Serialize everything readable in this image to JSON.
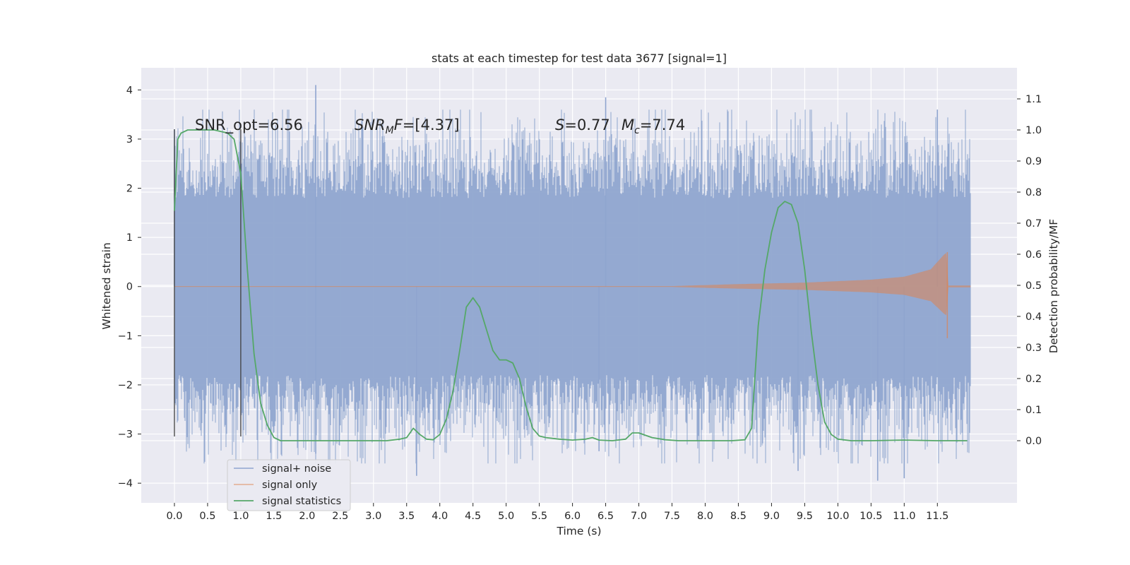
{
  "chart_data": {
    "type": "line",
    "title": "stats at each timestep for test data 3677 [signal=1]",
    "xlabel": "Time (s)",
    "ylabel_left": "Whitened strain",
    "ylabel_right": "Detection probability/MF",
    "xlim": [
      -0.5,
      12.7
    ],
    "ylim_left": [
      -4.4,
      4.45
    ],
    "ylim_right": [
      -0.2,
      1.2
    ],
    "x_ticks": [
      "0.0",
      "0.5",
      "1.0",
      "1.5",
      "2.0",
      "2.5",
      "3.0",
      "3.5",
      "4.0",
      "4.5",
      "5.0",
      "5.5",
      "6.0",
      "6.5",
      "7.0",
      "7.5",
      "8.0",
      "8.5",
      "9.0",
      "9.5",
      "10.0",
      "10.5",
      "11.0",
      "11.5"
    ],
    "y_ticks_left": [
      "−4",
      "−3",
      "−2",
      "−1",
      "0",
      "1",
      "2",
      "3",
      "4"
    ],
    "y_ticks_right": [
      "0.0",
      "0.1",
      "0.2",
      "0.3",
      "0.4",
      "0.5",
      "0.6",
      "0.7",
      "0.8",
      "0.9",
      "1.0",
      "1.1"
    ],
    "grid": true,
    "legend_position": "bottom-left",
    "annotations": {
      "snr_opt": "SNR_opt=6.56",
      "snr_mf": "=[4.37]",
      "snr_mf_prefix": "SNR",
      "snr_mf_sub": "M",
      "snr_mf_f": "F",
      "s_label": "S",
      "s_value": "=0.77",
      "mc_label": "M",
      "mc_sub": "c",
      "mc_value": "=7.74"
    },
    "window_markers": {
      "x": [
        0.0,
        1.0
      ],
      "y_range": [
        -3.05,
        3.2
      ]
    },
    "series": [
      {
        "name": "signal+ noise",
        "color": "#8fa5cf",
        "axis": "left",
        "x_range": [
          0.0,
          12.0
        ],
        "envelope_typical_max": 2.6,
        "envelope_typical_min": -2.6,
        "peaks": [
          [
            0.0,
            3.2
          ],
          [
            2.13,
            4.1
          ],
          [
            2.13,
            -3.4
          ],
          [
            3.65,
            -3.85
          ],
          [
            6.5,
            3.85
          ],
          [
            6.4,
            -3.35
          ],
          [
            10.6,
            -3.95
          ],
          [
            11.0,
            -3.9
          ],
          [
            11.5,
            3.6
          ],
          [
            9.4,
            -3.75
          ]
        ]
      },
      {
        "name": "signal only",
        "color": "#dd8452",
        "axis": "left",
        "x_range": [
          0.0,
          12.0
        ],
        "chirp_end": 11.65,
        "amplitude_points": [
          [
            0.0,
            0.01
          ],
          [
            7.5,
            0.01
          ],
          [
            8.5,
            0.05
          ],
          [
            9.5,
            0.08
          ],
          [
            10.5,
            0.14
          ],
          [
            11.0,
            0.2
          ],
          [
            11.4,
            0.35
          ],
          [
            11.6,
            0.65
          ],
          [
            11.65,
            0.7
          ],
          [
            11.66,
            0.02
          ],
          [
            12.0,
            0.02
          ]
        ]
      },
      {
        "name": "signal statistics",
        "color": "#55a868",
        "axis": "right",
        "x": [
          0.0,
          0.05,
          0.1,
          0.2,
          0.4,
          0.6,
          0.8,
          0.9,
          1.0,
          1.1,
          1.2,
          1.3,
          1.4,
          1.5,
          1.6,
          1.8,
          2.0,
          2.2,
          2.4,
          2.8,
          3.2,
          3.4,
          3.5,
          3.6,
          3.7,
          3.8,
          3.9,
          4.0,
          4.1,
          4.2,
          4.3,
          4.4,
          4.5,
          4.6,
          4.7,
          4.8,
          4.9,
          5.0,
          5.1,
          5.2,
          5.3,
          5.4,
          5.5,
          5.6,
          5.8,
          6.0,
          6.2,
          6.3,
          6.4,
          6.6,
          6.8,
          6.9,
          7.0,
          7.2,
          7.4,
          7.6,
          8.0,
          8.4,
          8.6,
          8.7,
          8.8,
          8.9,
          9.0,
          9.1,
          9.2,
          9.3,
          9.4,
          9.5,
          9.6,
          9.7,
          9.8,
          9.9,
          10.0,
          10.2,
          10.5,
          11.0,
          11.5,
          11.95
        ],
        "y": [
          0.74,
          0.97,
          0.99,
          1.0,
          1.0,
          1.0,
          0.99,
          0.97,
          0.86,
          0.55,
          0.28,
          0.12,
          0.05,
          0.01,
          0.0,
          0.0,
          0.0,
          0.0,
          0.0,
          0.0,
          0.0,
          0.005,
          0.01,
          0.04,
          0.02,
          0.005,
          0.003,
          0.02,
          0.07,
          0.16,
          0.29,
          0.43,
          0.46,
          0.43,
          0.36,
          0.29,
          0.26,
          0.26,
          0.25,
          0.2,
          0.11,
          0.04,
          0.015,
          0.01,
          0.005,
          0.002,
          0.005,
          0.01,
          0.002,
          0.0,
          0.005,
          0.025,
          0.025,
          0.01,
          0.003,
          0.0,
          0.0,
          0.0,
          0.003,
          0.04,
          0.37,
          0.55,
          0.67,
          0.75,
          0.77,
          0.76,
          0.7,
          0.55,
          0.35,
          0.18,
          0.06,
          0.02,
          0.005,
          0.0,
          0.0,
          0.002,
          0.0,
          0.0
        ]
      }
    ]
  }
}
